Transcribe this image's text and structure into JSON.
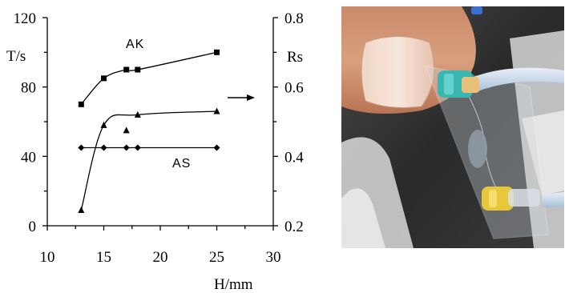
{
  "chart_data": {
    "type": "line",
    "xlabel": "H/mm",
    "ylabel_left": "T/s",
    "ylabel_right": "Rs",
    "xlim": [
      10,
      30
    ],
    "xticks": [
      "10",
      "15",
      "20",
      "25",
      "30"
    ],
    "ylim_left": [
      0,
      120
    ],
    "yticks_left": [
      "0",
      "40",
      "80",
      "120"
    ],
    "ylim_right": [
      0.2,
      0.8
    ],
    "yticks_right": [
      "0.2",
      "0.4",
      "0.6",
      "0.8"
    ],
    "grid": false,
    "series": [
      {
        "name": "AK",
        "axis": "left",
        "marker": "square",
        "x": [
          13,
          15,
          17,
          18,
          25
        ],
        "y": [
          70,
          85,
          90,
          90,
          100
        ]
      },
      {
        "axis": "right",
        "marker": "triangle",
        "x": [
          13,
          15,
          17,
          18,
          25
        ],
        "y": [
          0.245,
          0.49,
          0.475,
          0.52,
          0.53
        ]
      },
      {
        "name": "AS",
        "axis": "left",
        "marker": "diamond",
        "x": [
          13,
          15,
          17,
          18,
          25
        ],
        "y": [
          45,
          45,
          45,
          45,
          45
        ]
      }
    ],
    "annotations": [
      {
        "symbol": "→",
        "points_to": "right axis"
      }
    ]
  },
  "photo": {
    "subject": "microfluidic chip held between fingers with cyan and yellow tubing connectors"
  }
}
